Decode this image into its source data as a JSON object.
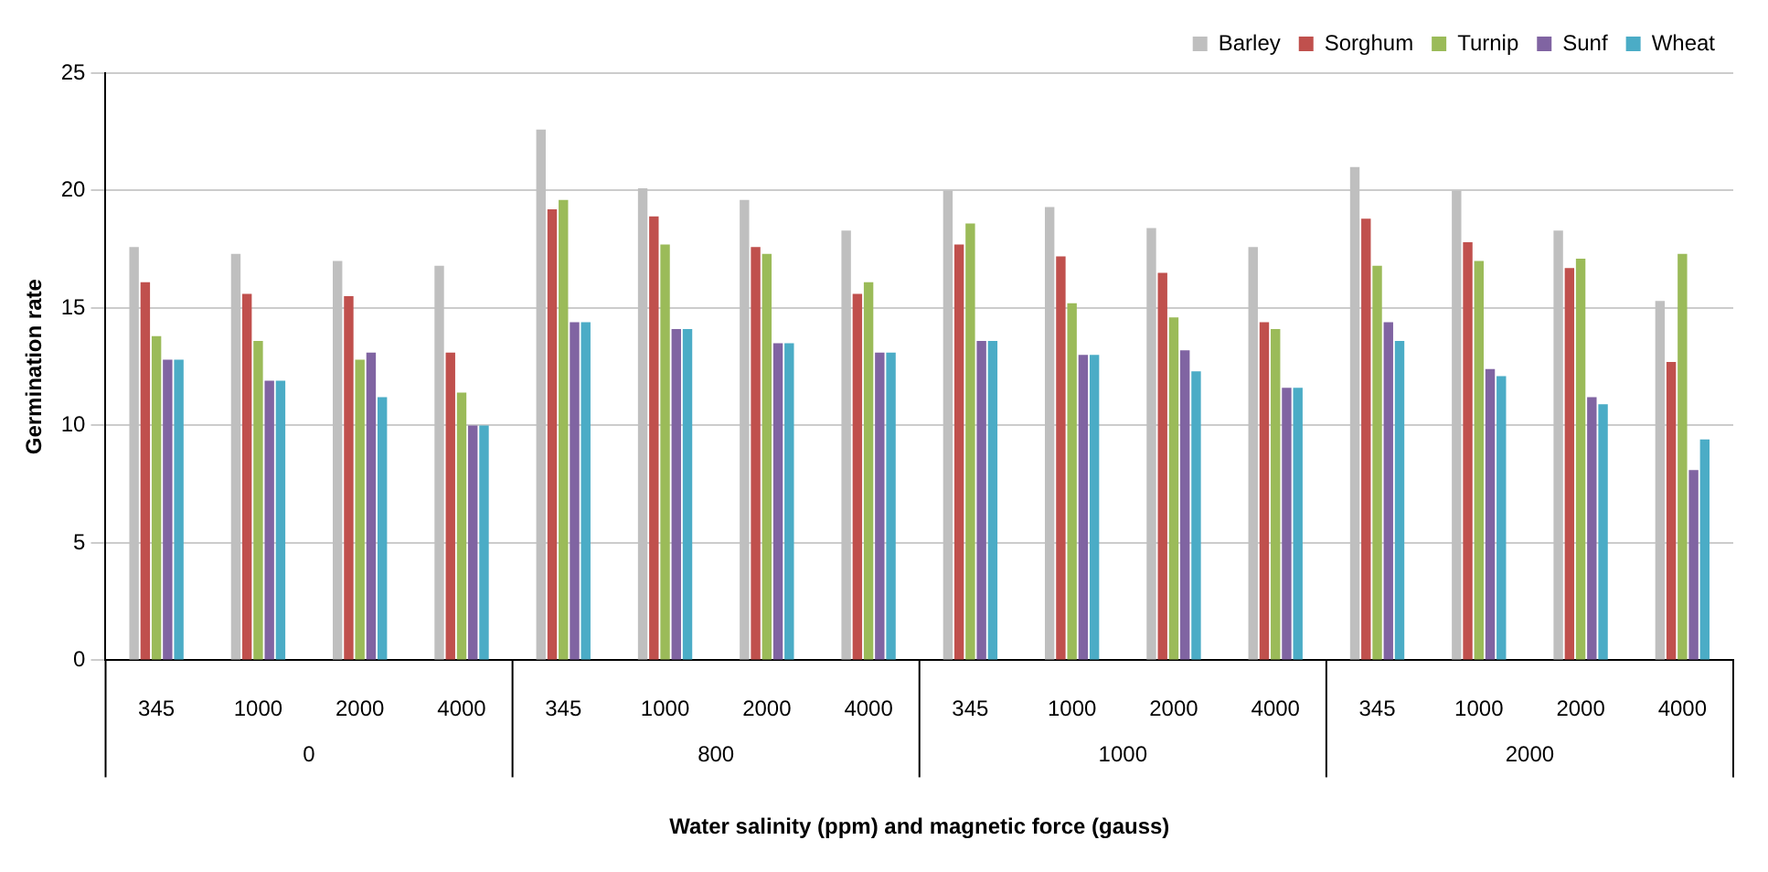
{
  "chart_data": {
    "type": "bar",
    "xlabel": "Water salinity (ppm) and magnetic force (gauss)",
    "ylabel": "Germination rate",
    "categories": [
      "345",
      "1000",
      "2000",
      "4000",
      "345",
      "1000",
      "2000",
      "4000",
      "345",
      "1000",
      "2000",
      "4000",
      "345",
      "1000",
      "2000",
      "4000"
    ],
    "annotations": [
      "0",
      "800",
      "1000",
      "2000"
    ],
    "series": [
      {
        "name": "Barley",
        "color": "#bfbfbf",
        "values": [
          17.6,
          17.3,
          17.0,
          16.8,
          22.6,
          20.1,
          19.6,
          18.3,
          20.0,
          19.3,
          18.4,
          17.6,
          21.0,
          20.0,
          18.3,
          15.3
        ]
      },
      {
        "name": "Sorghum",
        "color": "#c0504d",
        "values": [
          16.1,
          15.6,
          15.5,
          13.1,
          19.2,
          18.9,
          17.6,
          15.6,
          17.7,
          17.2,
          16.5,
          14.4,
          18.8,
          17.8,
          16.7,
          12.7
        ]
      },
      {
        "name": "Turnip",
        "color": "#9bbb59",
        "values": [
          13.8,
          13.6,
          12.8,
          11.4,
          19.6,
          17.7,
          17.3,
          16.1,
          18.6,
          15.2,
          14.6,
          14.1,
          16.8,
          17.0,
          17.1,
          17.3
        ]
      },
      {
        "name": "Sunf",
        "color": "#8064a2",
        "values": [
          12.8,
          11.9,
          13.1,
          10.0,
          14.4,
          14.1,
          13.5,
          13.1,
          13.6,
          13.0,
          13.2,
          11.6,
          14.4,
          12.4,
          11.2,
          8.1
        ]
      },
      {
        "name": "Wheat",
        "color": "#4bacc6",
        "values": [
          12.8,
          11.9,
          11.2,
          10.0,
          14.4,
          14.1,
          13.5,
          13.1,
          13.6,
          13.0,
          12.3,
          11.6,
          13.6,
          12.1,
          10.9,
          9.4
        ]
      }
    ],
    "ylim": [
      0,
      25
    ],
    "yticks": [
      0,
      5,
      10,
      15,
      20,
      25
    ],
    "grid": "y",
    "legend": "top right"
  }
}
